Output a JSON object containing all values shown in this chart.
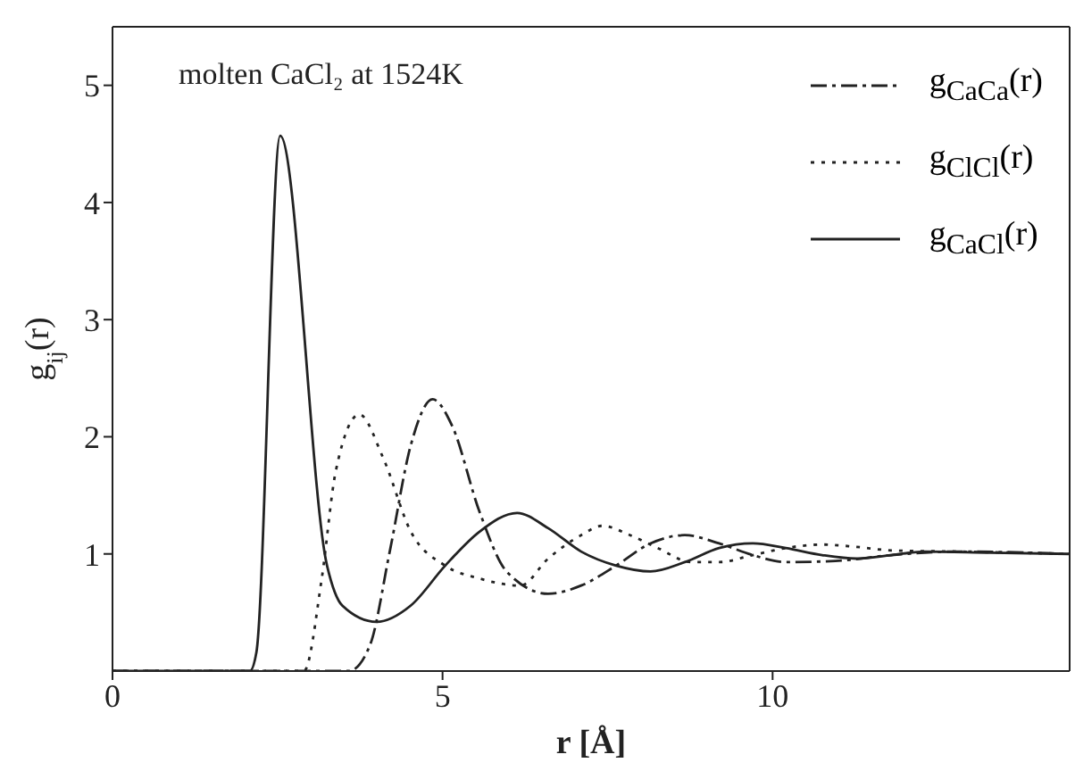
{
  "chart_data": {
    "type": "line",
    "xlabel": "r [Å]",
    "ylabel": "g$_{ij}$(r)",
    "annotations": [
      "molten CaCl₂ at 1524K"
    ],
    "xlim": [
      0,
      14.5
    ],
    "ylim": [
      0,
      5.5
    ],
    "xticks": [
      0,
      5,
      10
    ],
    "yticks": [
      1,
      2,
      3,
      4,
      5
    ],
    "legend": "top right",
    "marker": "none",
    "series": [
      {
        "name": "g$_{CaCa}$(r)",
        "color": "#222222",
        "line_style": "dashed",
        "x": [
          0,
          3.58,
          3.9,
          4.2,
          4.52,
          4.85,
          5.14,
          5.56,
          5.97,
          6.6,
          7.1,
          7.63,
          8.15,
          8.67,
          9.19,
          9.7,
          10.2,
          10.95,
          11.8,
          12.8,
          14.5
        ],
        "values": [
          0,
          0,
          0.22,
          1.02,
          1.93,
          2.32,
          2.1,
          1.36,
          0.85,
          0.66,
          0.73,
          0.9,
          1.09,
          1.16,
          1.09,
          0.99,
          0.93,
          0.94,
          0.99,
          1.02,
          1.0
        ]
      },
      {
        "name": "g$_{ClCl}$(r)",
        "color": "#222222",
        "line_style": "dotted",
        "x": [
          0,
          2.9,
          3.17,
          3.38,
          3.74,
          4.1,
          4.52,
          5.04,
          5.56,
          6.18,
          6.6,
          7.1,
          7.42,
          7.84,
          8.26,
          8.77,
          9.19,
          9.7,
          10.2,
          10.75,
          11.27,
          11.8,
          12.8,
          14.5
        ],
        "values": [
          0,
          0,
          0.79,
          1.7,
          2.19,
          1.82,
          1.19,
          0.9,
          0.79,
          0.73,
          0.96,
          1.16,
          1.24,
          1.16,
          1.05,
          0.93,
          0.93,
          0.99,
          1.05,
          1.08,
          1.06,
          1.03,
          1.02,
          1.0
        ]
      },
      {
        "name": "g$_{CaCl}$(r)",
        "color": "#222222",
        "line_style": "solid",
        "x": [
          0,
          2.08,
          2.18,
          2.54,
          3.25,
          3.48,
          4.0,
          4.52,
          5.04,
          5.56,
          6.13,
          6.6,
          7.1,
          7.63,
          8.15,
          8.67,
          9.19,
          9.7,
          10.2,
          10.75,
          11.27,
          11.8,
          12.3,
          13.3,
          14.5
        ],
        "values": [
          0,
          0,
          0.16,
          4.57,
          0.9,
          0.56,
          0.42,
          0.56,
          0.9,
          1.19,
          1.35,
          1.22,
          1.02,
          0.9,
          0.85,
          0.93,
          1.05,
          1.09,
          1.05,
          0.99,
          0.96,
          0.99,
          1.02,
          1.01,
          1.0
        ]
      }
    ]
  }
}
